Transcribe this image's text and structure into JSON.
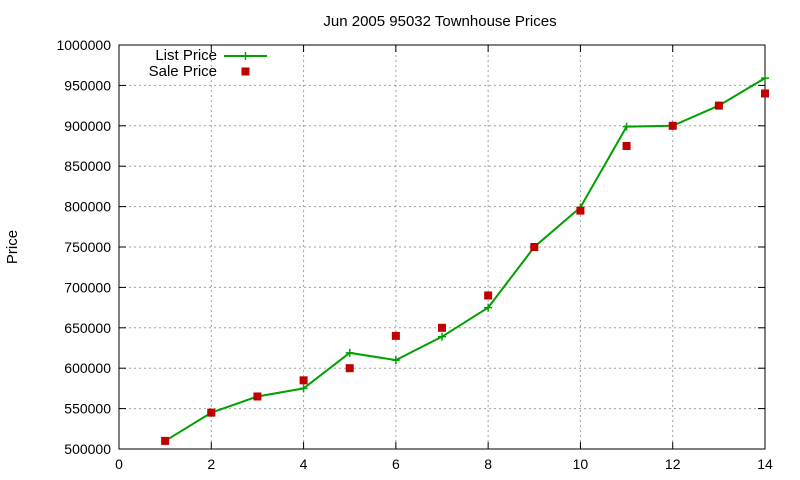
{
  "chart_data": {
    "type": "line",
    "title": "Jun 2005 95032 Townhouse Prices",
    "xlabel": "",
    "ylabel": "Price",
    "xlim": [
      0,
      14
    ],
    "ylim": [
      500000,
      1000000
    ],
    "xticks": [
      0,
      2,
      4,
      6,
      8,
      10,
      12,
      14
    ],
    "yticks": [
      500000,
      550000,
      600000,
      650000,
      700000,
      750000,
      800000,
      850000,
      900000,
      950000,
      1000000
    ],
    "grid": true,
    "legend_position": "top-left",
    "series": [
      {
        "name": "List Price",
        "style": "line-with-plus-markers",
        "color": "#00a000",
        "x": [
          1,
          2,
          3,
          4,
          5,
          6,
          7,
          8,
          9,
          10,
          11,
          12,
          13,
          14
        ],
        "y": [
          510000,
          545000,
          565000,
          575000,
          619000,
          610000,
          639000,
          675000,
          750000,
          799000,
          899000,
          900000,
          925000,
          959000
        ]
      },
      {
        "name": "Sale Price",
        "style": "square-markers",
        "color": "#c00000",
        "x": [
          1,
          2,
          3,
          4,
          5,
          6,
          7,
          8,
          9,
          10,
          11,
          12,
          13,
          14
        ],
        "y": [
          510000,
          545000,
          565000,
          585000,
          600000,
          640000,
          650000,
          690000,
          750000,
          795000,
          875000,
          900000,
          925000,
          940000
        ]
      }
    ]
  }
}
